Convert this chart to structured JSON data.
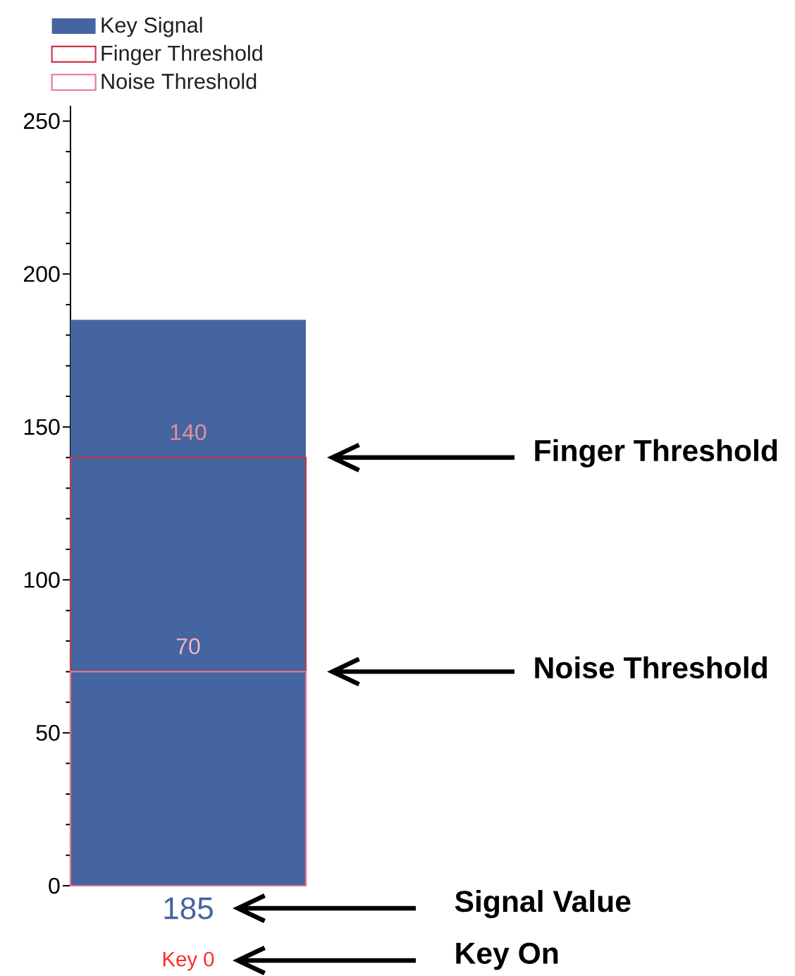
{
  "chart_data": {
    "type": "bar",
    "categories": [
      "Key 0"
    ],
    "series": [
      {
        "name": "Key Signal",
        "color": "#44659f",
        "values": [
          185
        ]
      },
      {
        "name": "Finger Threshold",
        "color": "#c8374a",
        "values": [
          140
        ]
      },
      {
        "name": "Noise Threshold",
        "color": "#e8758e",
        "values": [
          70
        ]
      }
    ],
    "ylim": [
      0,
      255
    ],
    "yticks": [
      0,
      50,
      100,
      150,
      200,
      250
    ],
    "legend": "top left",
    "data_labels": true,
    "annotations": [
      "Finger Threshold",
      "Noise Threshold",
      "Signal Value",
      "Key On"
    ]
  }
}
